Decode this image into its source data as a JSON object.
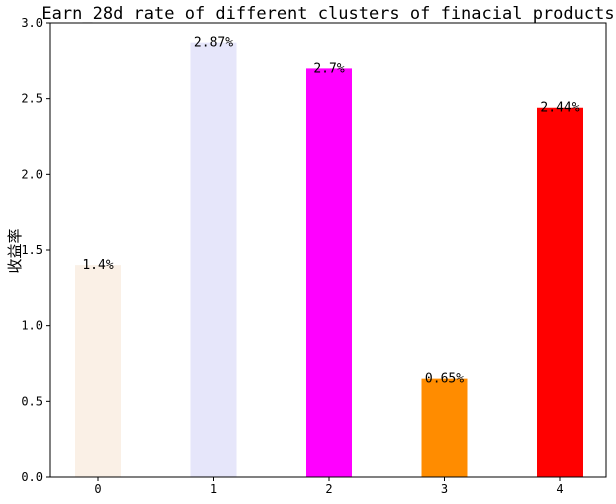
{
  "chart_data": {
    "type": "bar",
    "title": "Earn_28d rate of different clusters of finacial products",
    "xlabel": "",
    "ylabel": "收益率",
    "categories": [
      "0",
      "1",
      "2",
      "3",
      "4"
    ],
    "values": [
      1.4,
      2.87,
      2.7,
      0.65,
      2.44
    ],
    "data_labels": [
      "1.4%",
      "2.87%",
      "2.7%",
      "0.65%",
      "2.44%"
    ],
    "bar_colors": [
      "#faf0e6",
      "#e6e6fa",
      "#ff00ff",
      "#ff8c00",
      "#ff0000"
    ],
    "ylim": [
      0,
      3.0
    ],
    "yticks": [
      "0.0",
      "0.5",
      "1.0",
      "1.5",
      "2.0",
      "2.5",
      "3.0"
    ],
    "grid": false,
    "legend": "none"
  }
}
